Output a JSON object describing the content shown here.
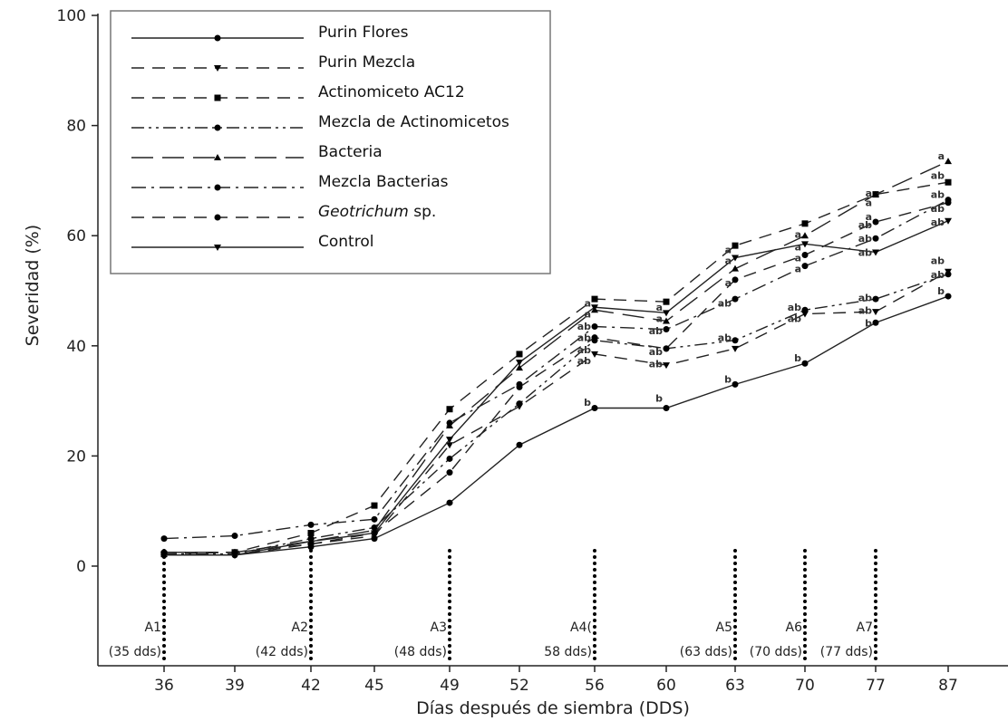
{
  "chart_data": {
    "type": "line",
    "xlabel": "Días después de siembra (DDS)",
    "ylabel": "Severidad (%)",
    "ylim": [
      0,
      100
    ],
    "y_ticks": [
      "0",
      "20",
      "40",
      "60",
      "80",
      "100"
    ],
    "categories": [
      "36",
      "39",
      "42",
      "45",
      "49",
      "52",
      "56",
      "60",
      "63",
      "70",
      "77",
      "87"
    ],
    "grid": false,
    "legend_position": "top-left",
    "series": [
      {
        "name": "Purin Flores",
        "style": "solid",
        "marker": "circle",
        "values": [
          2.0,
          2.0,
          3.5,
          5.0,
          11.5,
          22.0,
          28.7,
          28.7,
          33.0,
          36.8,
          44.2,
          49.0
        ]
      },
      {
        "name": "Purin Mezcla",
        "style": "dash",
        "marker": "triangle-down",
        "values": [
          2.0,
          2.0,
          4.0,
          5.5,
          22.0,
          29.0,
          38.5,
          36.5,
          39.5,
          45.8,
          46.2,
          53.5
        ]
      },
      {
        "name": "Actinomiceto AC12",
        "style": "dash",
        "marker": "square",
        "values": [
          2.2,
          2.5,
          6.0,
          11.0,
          28.5,
          38.5,
          48.5,
          48.0,
          58.2,
          62.2,
          67.5,
          69.7
        ]
      },
      {
        "name": "Mezcla de Actinomicetos",
        "style": "dash-dot-dot",
        "marker": "circle",
        "values": [
          2.2,
          2.2,
          5.0,
          7.0,
          19.5,
          29.5,
          41.0,
          39.5,
          41.0,
          46.5,
          48.5,
          53.0
        ]
      },
      {
        "name": "Bacteria",
        "style": "long-dash",
        "marker": "triangle-up",
        "values": [
          2.5,
          2.5,
          4.5,
          6.5,
          25.5,
          36.0,
          46.5,
          44.5,
          54.0,
          60.0,
          67.5,
          73.5
        ]
      },
      {
        "name": "Mezcla Bacterias",
        "style": "dash-dot",
        "marker": "circle",
        "values": [
          5.0,
          5.5,
          7.5,
          8.5,
          26.0,
          33.0,
          43.5,
          43.0,
          48.5,
          54.5,
          59.5,
          66.5
        ]
      },
      {
        "name": "Geotrichum sp.",
        "italic_part": "Geotrichum",
        "rest": " sp.",
        "style": "dash",
        "marker": "circle",
        "values": [
          2.5,
          2.5,
          4.0,
          6.0,
          17.0,
          32.5,
          41.5,
          39.5,
          52.0,
          56.5,
          62.5,
          66.0
        ]
      },
      {
        "name": "Control",
        "style": "solid",
        "marker": "triangle-down",
        "values": [
          2.0,
          2.0,
          4.5,
          6.0,
          23.0,
          37.0,
          47.0,
          46.0,
          56.0,
          58.5,
          57.0,
          62.7
        ]
      }
    ],
    "significance_letters": [
      {
        "x": "56",
        "y": 47.8,
        "text": "a"
      },
      {
        "x": "56",
        "y": 45.8,
        "text": "a"
      },
      {
        "x": "56",
        "y": 43.6,
        "text": "ab"
      },
      {
        "x": "56",
        "y": 41.5,
        "text": "ab"
      },
      {
        "x": "56",
        "y": 39.3,
        "text": "ab"
      },
      {
        "x": "56",
        "y": 37.3,
        "text": "ab"
      },
      {
        "x": "56",
        "y": 29.8,
        "text": "b"
      },
      {
        "x": "60",
        "y": 47.0,
        "text": "a"
      },
      {
        "x": "60",
        "y": 45.0,
        "text": "a"
      },
      {
        "x": "60",
        "y": 42.8,
        "text": "ab"
      },
      {
        "x": "60",
        "y": 39.0,
        "text": "ab"
      },
      {
        "x": "60",
        "y": 36.8,
        "text": "ab"
      },
      {
        "x": "60",
        "y": 30.5,
        "text": "b"
      },
      {
        "x": "63",
        "y": 57.5,
        "text": "a"
      },
      {
        "x": "63",
        "y": 55.5,
        "text": "a"
      },
      {
        "x": "63",
        "y": 51.5,
        "text": "a"
      },
      {
        "x": "63",
        "y": 47.8,
        "text": "ab"
      },
      {
        "x": "63",
        "y": 41.5,
        "text": "ab"
      },
      {
        "x": "63",
        "y": 34.0,
        "text": "b"
      },
      {
        "x": "70",
        "y": 60.3,
        "text": "a"
      },
      {
        "x": "70",
        "y": 58.0,
        "text": "a"
      },
      {
        "x": "70",
        "y": 56.0,
        "text": "a"
      },
      {
        "x": "70",
        "y": 54.0,
        "text": "a"
      },
      {
        "x": "70",
        "y": 47.0,
        "text": "ab"
      },
      {
        "x": "70",
        "y": 45.0,
        "text": "ab"
      },
      {
        "x": "70",
        "y": 37.8,
        "text": "b"
      },
      {
        "x": "77",
        "y": 67.8,
        "text": "a"
      },
      {
        "x": "77",
        "y": 66.0,
        "text": "a"
      },
      {
        "x": "77",
        "y": 63.5,
        "text": "a"
      },
      {
        "x": "77",
        "y": 62.0,
        "text": "ab"
      },
      {
        "x": "77",
        "y": 59.5,
        "text": "ab"
      },
      {
        "x": "77",
        "y": 57.0,
        "text": "ab"
      },
      {
        "x": "77",
        "y": 48.8,
        "text": "ab"
      },
      {
        "x": "77",
        "y": 46.5,
        "text": "ab"
      },
      {
        "x": "77",
        "y": 44.2,
        "text": "b"
      },
      {
        "x": "87",
        "y": 74.5,
        "text": "a"
      },
      {
        "x": "87",
        "y": 71.0,
        "text": "ab"
      },
      {
        "x": "87",
        "y": 67.5,
        "text": "ab"
      },
      {
        "x": "87",
        "y": 65.0,
        "text": "ab"
      },
      {
        "x": "87",
        "y": 62.5,
        "text": "ab"
      },
      {
        "x": "87",
        "y": 55.5,
        "text": "ab"
      },
      {
        "x": "87",
        "y": 53.0,
        "text": "ab"
      },
      {
        "x": "87",
        "y": 50.0,
        "text": "b"
      }
    ],
    "applications": [
      {
        "x": "36",
        "label": "A1",
        "sub": "(35 dds)"
      },
      {
        "x": "42",
        "label": "A2",
        "sub": "(42 dds)"
      },
      {
        "x": "49",
        "label": "A3",
        "sub": "(48 dds)"
      },
      {
        "x": "56",
        "label": "A4(",
        "sub": "58 dds)"
      },
      {
        "x": "63",
        "label": "A5",
        "sub": "(63 dds)"
      },
      {
        "x": "70",
        "label": "A6",
        "sub": "(70 dds)"
      },
      {
        "x": "77",
        "label": "A7",
        "sub": "(77 dds)"
      }
    ]
  }
}
